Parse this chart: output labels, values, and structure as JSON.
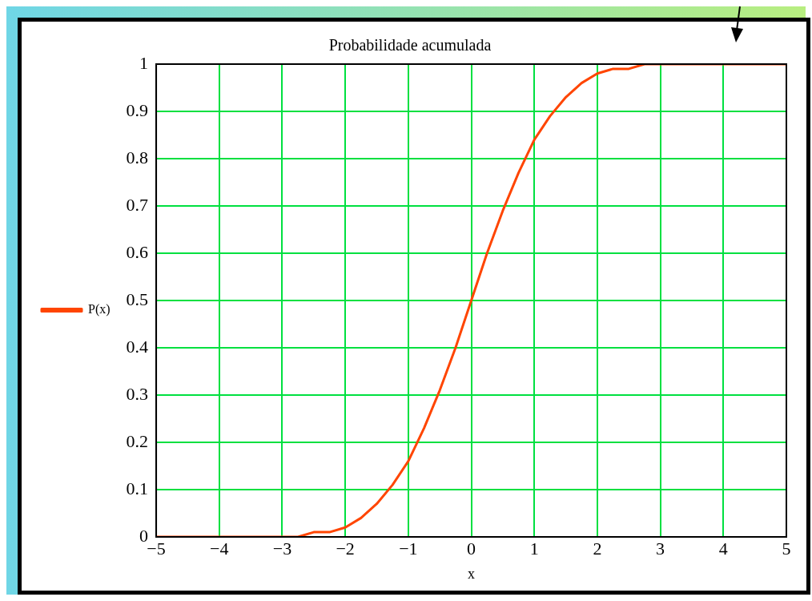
{
  "chart_data": {
    "type": "line",
    "title": "Probabilidade acumulada",
    "xlabel": "x",
    "x": [
      -5,
      -4,
      -3.5,
      -3,
      -2.75,
      -2.5,
      -2.25,
      -2,
      -1.75,
      -1.5,
      -1.25,
      -1,
      -0.75,
      -0.5,
      -0.25,
      0,
      0.25,
      0.5,
      0.75,
      1,
      1.25,
      1.5,
      1.75,
      2,
      2.25,
      2.5,
      2.75,
      3,
      4,
      5
    ],
    "series": [
      {
        "name": "P(x)",
        "color": "#ff4500",
        "values": [
          0,
          0,
          0,
          0,
          0,
          0.01,
          0.01,
          0.02,
          0.04,
          0.07,
          0.11,
          0.16,
          0.23,
          0.31,
          0.4,
          0.5,
          0.6,
          0.69,
          0.77,
          0.84,
          0.89,
          0.93,
          0.96,
          0.98,
          0.99,
          0.99,
          1,
          1,
          1,
          1
        ]
      }
    ],
    "xlim": [
      -5,
      5
    ],
    "xticks": [
      -5,
      -4,
      -3,
      -2,
      -1,
      0,
      1,
      2,
      3,
      4,
      5
    ],
    "ylim": [
      0,
      1
    ],
    "yticks": [
      0,
      0.1,
      0.2,
      0.3,
      0.4,
      0.5,
      0.6,
      0.7,
      0.8,
      0.9,
      1
    ],
    "grid": true,
    "legend": "left",
    "marker": "none",
    "line_style": "solid"
  }
}
